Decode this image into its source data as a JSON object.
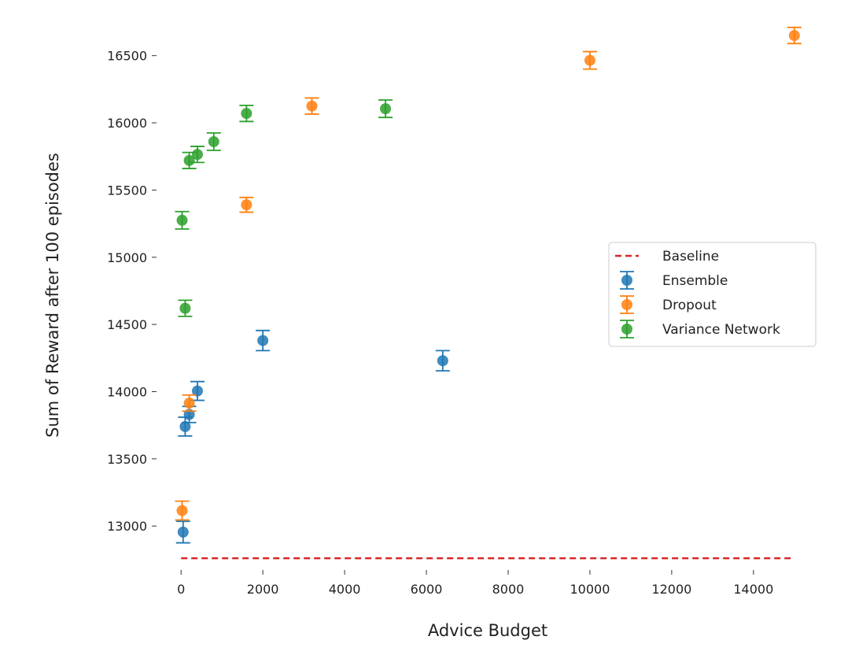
{
  "chart_data": {
    "type": "scatter",
    "title": "",
    "xlabel": "Advice Budget",
    "ylabel": "Sum of Reward after 100 episodes",
    "xlim": [
      -600,
      15600
    ],
    "ylim": [
      12720,
      16750
    ],
    "xticks": [
      0,
      2000,
      4000,
      6000,
      8000,
      10000,
      12000,
      14000
    ],
    "yticks": [
      13000,
      13500,
      14000,
      14500,
      15000,
      15500,
      16000,
      16500
    ],
    "grid": false,
    "legend_position": "center-right",
    "baseline": {
      "name": "Baseline",
      "color": "#d62728",
      "style": "dashed",
      "y": 12760,
      "x_range": [
        0,
        15000
      ]
    },
    "series": [
      {
        "name": "Ensemble",
        "color": "#1f77b4",
        "points": [
          {
            "x": 50,
            "y": 12955,
            "err": 80
          },
          {
            "x": 100,
            "y": 13740,
            "err": 70
          },
          {
            "x": 200,
            "y": 13830,
            "err": 60
          },
          {
            "x": 400,
            "y": 14005,
            "err": 70
          },
          {
            "x": 2000,
            "y": 14380,
            "err": 75
          },
          {
            "x": 6400,
            "y": 14230,
            "err": 75
          }
        ]
      },
      {
        "name": "Dropout",
        "color": "#ff7f0e",
        "points": [
          {
            "x": 25,
            "y": 13115,
            "err": 70
          },
          {
            "x": 200,
            "y": 13915,
            "err": 60
          },
          {
            "x": 1600,
            "y": 15390,
            "err": 55
          },
          {
            "x": 3200,
            "y": 16125,
            "err": 60
          },
          {
            "x": 10000,
            "y": 16465,
            "err": 65
          },
          {
            "x": 15000,
            "y": 16650,
            "err": 60
          }
        ]
      },
      {
        "name": "Variance Network",
        "color": "#2ca02c",
        "points": [
          {
            "x": 25,
            "y": 15275,
            "err": 65
          },
          {
            "x": 100,
            "y": 14620,
            "err": 60
          },
          {
            "x": 200,
            "y": 15720,
            "err": 60
          },
          {
            "x": 400,
            "y": 15765,
            "err": 60
          },
          {
            "x": 800,
            "y": 15860,
            "err": 65
          },
          {
            "x": 1600,
            "y": 16070,
            "err": 60
          },
          {
            "x": 5000,
            "y": 16105,
            "err": 65
          }
        ]
      }
    ]
  }
}
